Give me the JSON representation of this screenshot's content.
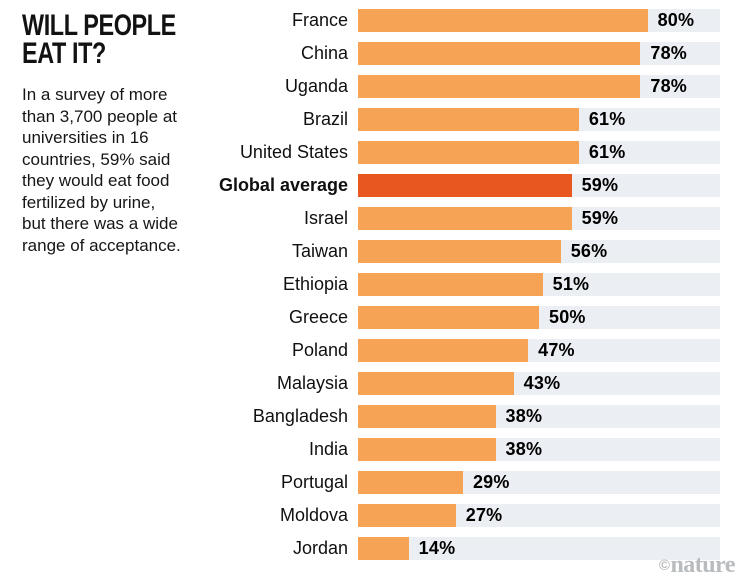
{
  "header": {
    "title": "WILL PEOPLE\nEAT IT?",
    "description": "In a survey of more\nthan 3,700 people at\nuniversities in 16\ncountries, 59% said\nthey would eat food\nfertilized by urine,\nbut there was a wide\nrange of acceptance."
  },
  "colors": {
    "bar": "#F6A355",
    "highlight": "#E7571F",
    "track": "#EBEEF2",
    "watermark": "#b9bcbe",
    "text": "#121212"
  },
  "chart_data": {
    "type": "bar",
    "orientation": "horizontal",
    "title": "WILL PEOPLE EAT IT?",
    "subtitle": "In a survey of more than 3,700 people at universities in 16 countries, 59% said they would eat food fertilized by urine, but there was a wide range of acceptance.",
    "categories": [
      "France",
      "China",
      "Uganda",
      "Brazil",
      "United States",
      "Global average",
      "Israel",
      "Taiwan",
      "Ethiopia",
      "Greece",
      "Poland",
      "Malaysia",
      "Bangladesh",
      "India",
      "Portugal",
      "Moldova",
      "Jordan"
    ],
    "values": [
      80,
      78,
      78,
      61,
      61,
      59,
      59,
      56,
      51,
      50,
      47,
      43,
      38,
      38,
      29,
      27,
      14
    ],
    "value_suffix": "%",
    "highlight_category": "Global average",
    "highlight_index": 5,
    "xlim": [
      0,
      100
    ],
    "grid": false,
    "legend": false
  },
  "watermark": {
    "symbol": "©",
    "name": "nature"
  }
}
